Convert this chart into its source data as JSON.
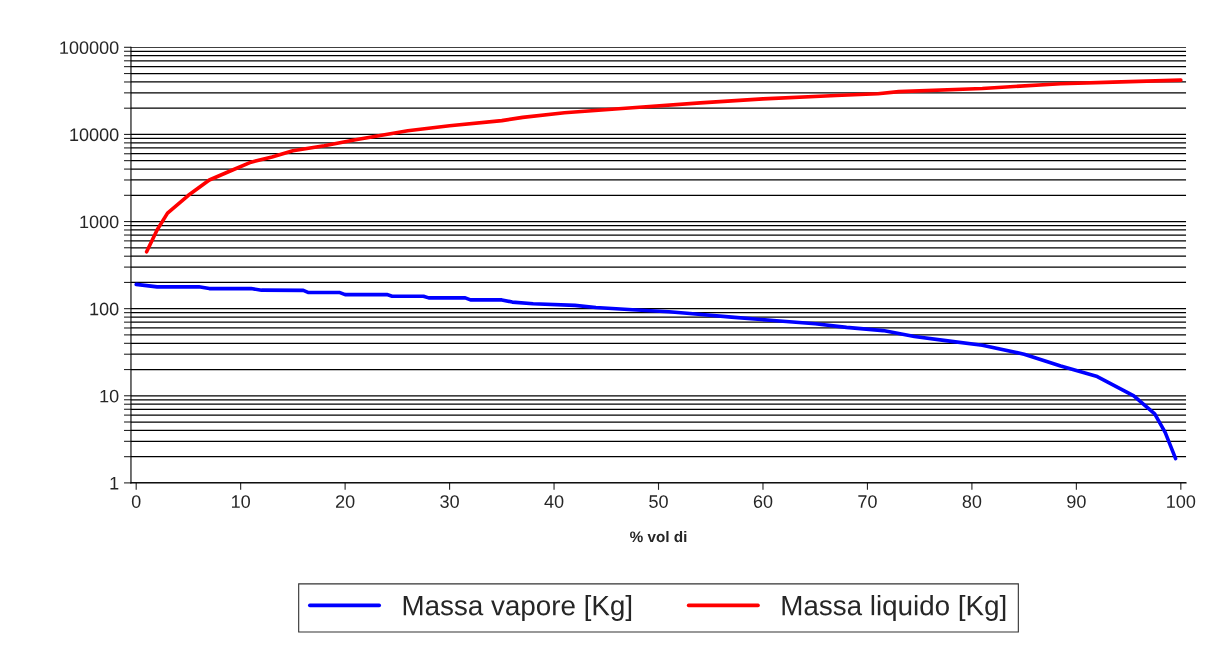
{
  "chart_data": {
    "type": "line",
    "xlabel": "% vol di",
    "xlim": [
      -0.5,
      100.5
    ],
    "xticks": [
      0,
      10,
      20,
      30,
      40,
      50,
      60,
      70,
      80,
      90,
      100
    ],
    "ylim": [
      1,
      100000
    ],
    "log": "y",
    "yticks": [
      1,
      {
        "value": 2,
        "label": null
      },
      {
        "value": 3,
        "label": null
      },
      {
        "value": 4,
        "label": null
      },
      {
        "value": 5,
        "label": null
      },
      {
        "value": 6,
        "label": null
      },
      {
        "value": 7,
        "label": null
      },
      {
        "value": 8,
        "label": null
      },
      {
        "value": 9,
        "label": null
      },
      10,
      {
        "value": 20,
        "label": null
      },
      {
        "value": 30,
        "label": null
      },
      {
        "value": 40,
        "label": null
      },
      {
        "value": 50,
        "label": null
      },
      {
        "value": 60,
        "label": null
      },
      {
        "value": 70,
        "label": null
      },
      {
        "value": 80,
        "label": null
      },
      {
        "value": 90,
        "label": null
      },
      100,
      {
        "value": 200,
        "label": null
      },
      {
        "value": 300,
        "label": null
      },
      {
        "value": 400,
        "label": null
      },
      {
        "value": 500,
        "label": null
      },
      {
        "value": 600,
        "label": null
      },
      {
        "value": 700,
        "label": null
      },
      {
        "value": 800,
        "label": null
      },
      {
        "value": 900,
        "label": null
      },
      1000,
      {
        "value": 2000,
        "label": null
      },
      {
        "value": 3000,
        "label": null
      },
      {
        "value": 4000,
        "label": null
      },
      {
        "value": 5000,
        "label": null
      },
      {
        "value": 6000,
        "label": null
      },
      {
        "value": 7000,
        "label": null
      },
      {
        "value": 8000,
        "label": null
      },
      {
        "value": 9000,
        "label": null
      },
      10000,
      {
        "value": 20000,
        "label": null
      },
      {
        "value": 30000,
        "label": null
      },
      {
        "value": 40000,
        "label": null
      },
      {
        "value": 50000,
        "label": null
      },
      {
        "value": 60000,
        "label": null
      },
      {
        "value": 70000,
        "label": null
      },
      {
        "value": 80000,
        "label": null
      },
      {
        "value": 90000,
        "label": null
      },
      100000
    ],
    "grid": "y",
    "legend": "bottom",
    "marker": "none",
    "line_style": "solid",
    "series": [
      {
        "name": "Massa vapore [Kg]",
        "color": "#0000ff",
        "x": [
          0,
          2,
          6,
          7,
          11,
          12,
          16,
          16.5,
          19.5,
          20,
          24,
          24.5,
          27.5,
          28,
          31.5,
          32,
          35,
          36,
          38,
          42,
          44,
          47.5,
          51,
          53,
          57,
          61,
          65,
          68,
          71.5,
          74.5,
          77.5,
          81,
          85,
          88.5,
          92,
          95.5,
          97.5,
          98.5,
          99.5
        ],
        "values": [
          190,
          178,
          178,
          170,
          170,
          163,
          162,
          153,
          153,
          145,
          145,
          139,
          139,
          133,
          133,
          126,
          126,
          119,
          114,
          109,
          103,
          97,
          92,
          88,
          80,
          73,
          67,
          61,
          56,
          48,
          43,
          38,
          30,
          22,
          16.6,
          10,
          6.2,
          3.8,
          1.9
        ]
      },
      {
        "name": "Massa liquido [Kg]",
        "color": "#ff0000",
        "x": [
          1,
          2,
          3,
          5,
          7,
          9,
          11,
          13,
          15,
          18,
          21,
          26,
          30,
          35,
          37,
          41,
          47.5,
          54,
          60,
          67,
          71,
          73,
          81,
          88.5,
          93.5,
          100
        ],
        "values": [
          450,
          800,
          1250,
          2000,
          3000,
          3800,
          4800,
          5500,
          6500,
          7400,
          8700,
          11000,
          12600,
          14400,
          15700,
          17700,
          20200,
          23000,
          25600,
          28000,
          29300,
          31000,
          33700,
          38200,
          39800,
          42000
        ]
      }
    ]
  }
}
